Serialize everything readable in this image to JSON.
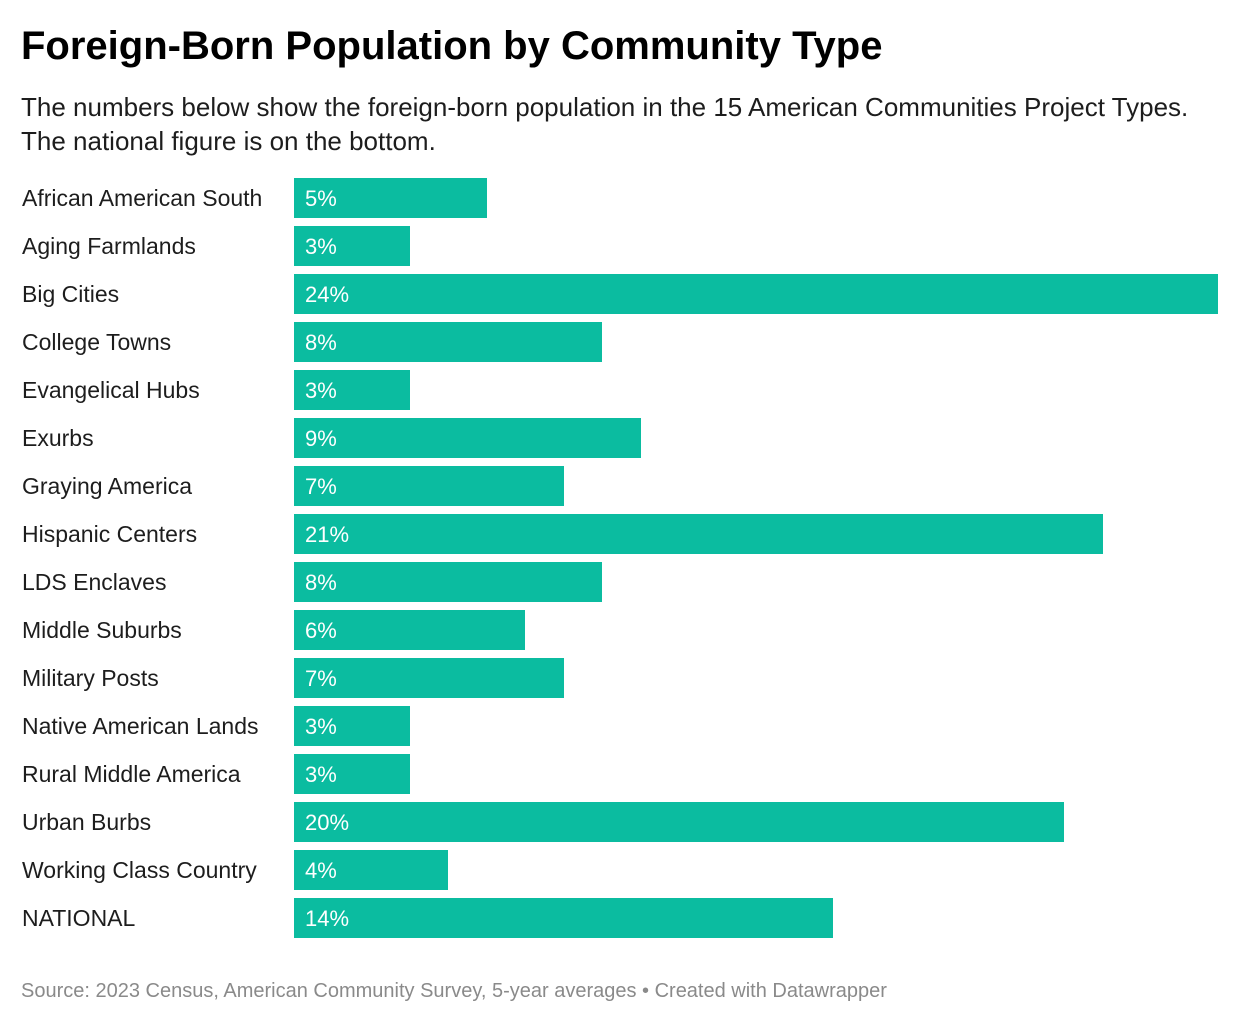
{
  "header": {
    "title": "Foreign-Born Population by Community Type",
    "subtitle": "The numbers below show the foreign-born population in the 15 American Communities Project Types. The national figure is on the bottom."
  },
  "footer": {
    "source": "Source: 2023 Census, American Community Survey, 5-year averages • Created with Datawrapper"
  },
  "colors": {
    "bar": "#0bbca0",
    "bar_label": "#ffffff"
  },
  "chart_data": {
    "type": "bar",
    "orientation": "horizontal",
    "title": "Foreign-Born Population by Community Type",
    "subtitle": "The numbers below show the foreign-born population in the 15 American Communities Project Types. The national figure is on the bottom.",
    "categories": [
      "African American South",
      "Aging Farmlands",
      "Big Cities",
      "College Towns",
      "Evangelical Hubs",
      "Exurbs",
      "Graying America",
      "Hispanic Centers",
      "LDS Enclaves",
      "Middle Suburbs",
      "Military Posts",
      "Native American Lands",
      "Rural Middle America",
      "Urban Burbs",
      "Working Class Country",
      "NATIONAL"
    ],
    "values": [
      5,
      3,
      24,
      8,
      3,
      9,
      7,
      21,
      8,
      6,
      7,
      3,
      3,
      20,
      4,
      14
    ],
    "value_labels": [
      "5%",
      "3%",
      "24%",
      "8%",
      "3%",
      "9%",
      "7%",
      "21%",
      "8%",
      "6%",
      "7%",
      "3%",
      "3%",
      "20%",
      "4%",
      "14%"
    ],
    "unit": "%",
    "xlim": [
      0,
      24
    ],
    "grid": false,
    "legend": "none"
  }
}
